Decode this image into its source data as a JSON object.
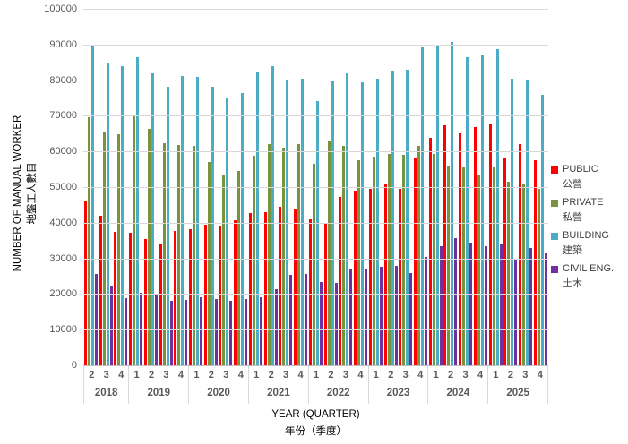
{
  "chart_data": {
    "type": "bar",
    "title": "",
    "ylabel": "NUMBER OF MANUAL WORKER",
    "ylabel_zh": "地盤工人數目",
    "xlabel": "YEAR (QUARTER)",
    "xlabel_zh": "年份（季度）",
    "ylim": [
      0,
      100000
    ],
    "ytick_step": 10000,
    "yticks": [
      "100000",
      "90000",
      "80000",
      "70000",
      "60000",
      "50000",
      "40000",
      "30000",
      "20000",
      "10000",
      "0"
    ],
    "grid": "horizontal",
    "legend_position": "right",
    "years": [
      {
        "label": "2018",
        "quarters": [
          "2",
          "3",
          "4"
        ]
      },
      {
        "label": "2019",
        "quarters": [
          "1",
          "2",
          "3",
          "4"
        ]
      },
      {
        "label": "2020",
        "quarters": [
          "1",
          "2",
          "3",
          "4"
        ]
      },
      {
        "label": "2021",
        "quarters": [
          "1",
          "2",
          "3",
          "4"
        ]
      },
      {
        "label": "2022",
        "quarters": [
          "1",
          "2",
          "3",
          "4"
        ]
      },
      {
        "label": "2023",
        "quarters": [
          "1",
          "2",
          "3",
          "4"
        ]
      },
      {
        "label": "2024",
        "quarters": [
          "1",
          "2",
          "3",
          "4"
        ]
      },
      {
        "label": "2025",
        "quarters": [
          "1",
          "2",
          "3",
          "4"
        ]
      }
    ],
    "series": [
      {
        "name": "PUBLIC",
        "name_zh": "公營",
        "color": "#FF0000",
        "values": [
          46000,
          42000,
          37400,
          37200,
          35500,
          34000,
          37700,
          38300,
          39500,
          39300,
          40700,
          42600,
          43000,
          44400,
          44000,
          41000,
          40000,
          47200,
          49000,
          49400,
          51000,
          49600,
          58000,
          63800,
          67300,
          65200,
          66900,
          67500,
          58300,
          62000,
          57500
        ]
      },
      {
        "name": "PRIVATE",
        "name_zh": "私營",
        "color": "#77933C",
        "values": [
          69500,
          65300,
          64900,
          69800,
          66400,
          62200,
          61900,
          61600,
          57000,
          53500,
          54500,
          58900,
          62000,
          61000,
          62000,
          56500,
          62700,
          61600,
          57500,
          58500,
          59400,
          59000,
          61500,
          59400,
          55800,
          55500,
          53400,
          55600,
          51500,
          50800,
          49500
        ]
      },
      {
        "name": "BUILDING",
        "name_zh": "建築",
        "color": "#4BACC6",
        "values": [
          90000,
          84800,
          83800,
          86500,
          82200,
          78200,
          81200,
          80800,
          78100,
          74800,
          76300,
          82400,
          83900,
          80200,
          80400,
          74200,
          79600,
          81900,
          79400,
          80300,
          82600,
          82800,
          89200,
          89700,
          90700,
          86400,
          87100,
          88700,
          80400,
          80200,
          75800
        ]
      },
      {
        "name": "CIVIL ENG.",
        "name_zh": "土木",
        "color": "#7030A0",
        "values": [
          25600,
          22400,
          18900,
          20400,
          19600,
          18100,
          18400,
          19200,
          18600,
          18000,
          18500,
          19100,
          21300,
          25500,
          25600,
          23300,
          23100,
          26900,
          27100,
          27600,
          27800,
          25800,
          30300,
          33500,
          35800,
          34200,
          33500,
          34000,
          29600,
          32900,
          31300
        ]
      }
    ]
  }
}
